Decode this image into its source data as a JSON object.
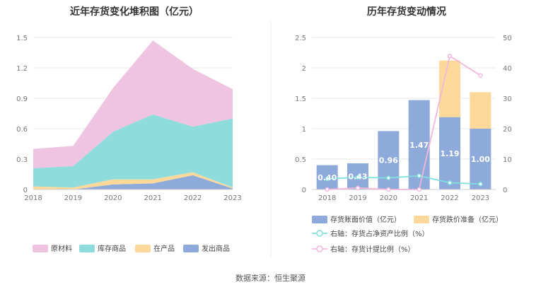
{
  "source": "数据来源：恒生聚源",
  "chart_data": [
    {
      "type": "area",
      "title": "近年存货变化堆积图（亿元）",
      "x": [
        "2018",
        "2019",
        "2020",
        "2021",
        "2022",
        "2023"
      ],
      "ylim": [
        0,
        1.5
      ],
      "yticks": [
        "0",
        "0.3",
        "0.6",
        "0.9",
        "1.2",
        "1.5"
      ],
      "stacked": true,
      "series": [
        {
          "name": "发出商品",
          "color": "#8eaadb",
          "values": [
            0.0,
            0.0,
            0.05,
            0.06,
            0.14,
            0.01
          ]
        },
        {
          "name": "在产品",
          "color": "#fdd89b",
          "values": [
            0.03,
            0.02,
            0.05,
            0.04,
            0.03,
            0.01
          ]
        },
        {
          "name": "库存商品",
          "color": "#8fdcdc",
          "values": [
            0.18,
            0.21,
            0.47,
            0.64,
            0.45,
            0.68
          ]
        },
        {
          "name": "原材料",
          "color": "#eec4e0",
          "values": [
            0.19,
            0.2,
            0.43,
            0.73,
            0.57,
            0.29
          ]
        }
      ],
      "legend_order": [
        "原材料",
        "库存商品",
        "在产品",
        "发出商品"
      ],
      "legend_position": "bottom"
    },
    {
      "type": "bar",
      "title": "历年存货变动情况",
      "x": [
        "2018",
        "2019",
        "2020",
        "2021",
        "2022",
        "2023"
      ],
      "ylim_left": [
        0,
        2.5
      ],
      "yticks_left": [
        "0",
        "0.5",
        "1",
        "1.5",
        "2",
        "2.5"
      ],
      "ylim_right": [
        0,
        50
      ],
      "yticks_right": [
        "0",
        "10",
        "20",
        "30",
        "40",
        "50"
      ],
      "bars": [
        {
          "name": "存货账面价值（亿元）",
          "color": "#8eaadb",
          "values": [
            0.4,
            0.43,
            0.96,
            1.47,
            1.19,
            1.0
          ],
          "labels": [
            "0.40",
            "0.43",
            "0.96",
            "1.47",
            "1.19",
            "1.00"
          ]
        },
        {
          "name": "存货跌价准备（亿元）",
          "color": "#fdd89b",
          "values": [
            0.0,
            0.0,
            0.0,
            0.0,
            0.93,
            0.6
          ]
        }
      ],
      "lines": [
        {
          "name": "右轴：存货占净资产比例（%）",
          "color": "#7fe0dc",
          "axis": "right",
          "values": [
            3.5,
            4.0,
            3.8,
            4.5,
            2.2,
            1.8
          ]
        },
        {
          "name": "右轴：存货计提比例（%）",
          "color": "#f1b7dc",
          "axis": "right",
          "values": [
            0.0,
            0.5,
            0.0,
            0.0,
            43.9,
            37.5
          ]
        }
      ],
      "legend_position": "bottom"
    }
  ]
}
